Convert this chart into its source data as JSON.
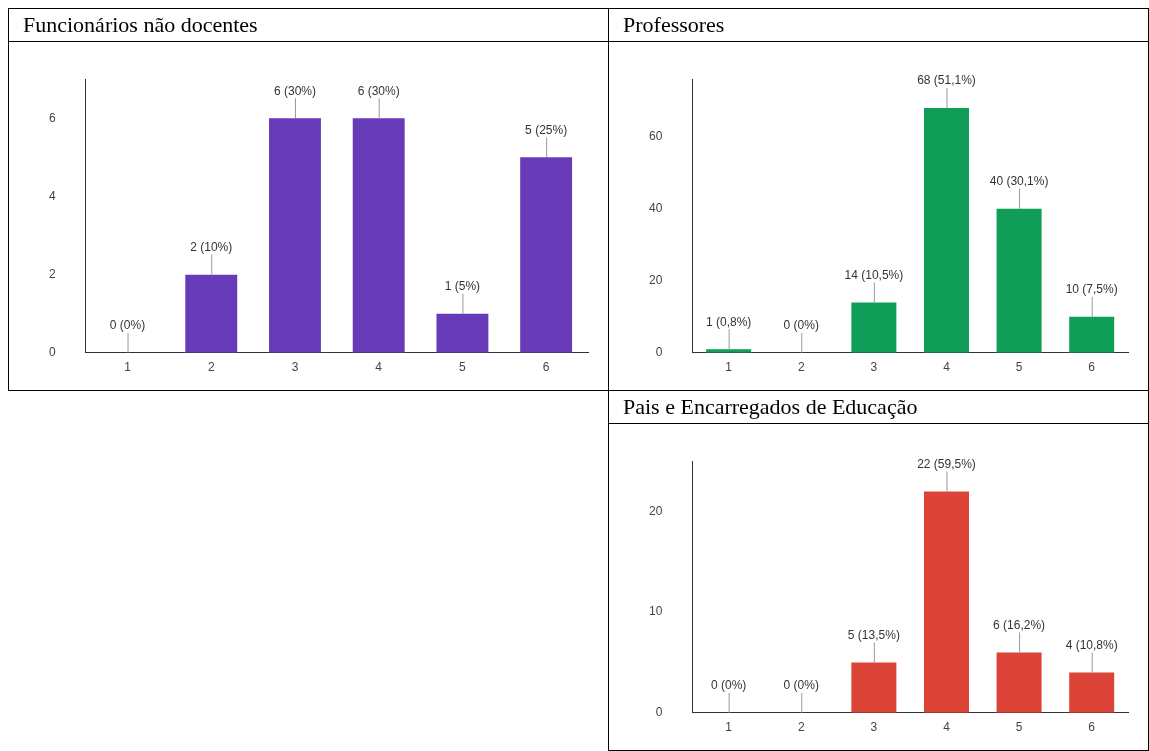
{
  "chart_data": [
    {
      "type": "bar",
      "title": "Funcionários não docentes",
      "categories": [
        "1",
        "2",
        "3",
        "4",
        "5",
        "6"
      ],
      "values": [
        0,
        2,
        6,
        6,
        1,
        5
      ],
      "color": "#673ab7",
      "value_labels": [
        "0 (0%)",
        "2 (10%)",
        "6 (30%)",
        "6 (30%)",
        "1 (5%)",
        "5 (25%)"
      ],
      "ylim": [
        0,
        7
      ],
      "yticks": [
        0,
        2,
        4,
        6
      ]
    },
    {
      "type": "bar",
      "title": "Professores",
      "categories": [
        "1",
        "2",
        "3",
        "4",
        "5",
        "6"
      ],
      "values": [
        1,
        0,
        14,
        68,
        40,
        10
      ],
      "color": "#0f9d58",
      "value_labels": [
        "1 (0,8%)",
        "0 (0%)",
        "14 (10,5%)",
        "68 (51,1%)",
        "40 (30,1%)",
        "10 (7,5%)"
      ],
      "ylim": [
        0,
        76
      ],
      "yticks": [
        0,
        20,
        40,
        60
      ]
    },
    {
      "type": "bar",
      "title": "Pais e Encarregados de Educação",
      "categories": [
        "1",
        "2",
        "3",
        "4",
        "5",
        "6"
      ],
      "values": [
        0,
        0,
        5,
        22,
        6,
        4
      ],
      "color": "#db4437",
      "value_labels": [
        "0 (0%)",
        "0 (0%)",
        "5 (13,5%)",
        "22 (59,5%)",
        "6 (16,2%)",
        "4 (10,8%)"
      ],
      "ylim": [
        0,
        25
      ],
      "yticks": [
        0,
        10,
        20
      ]
    }
  ]
}
